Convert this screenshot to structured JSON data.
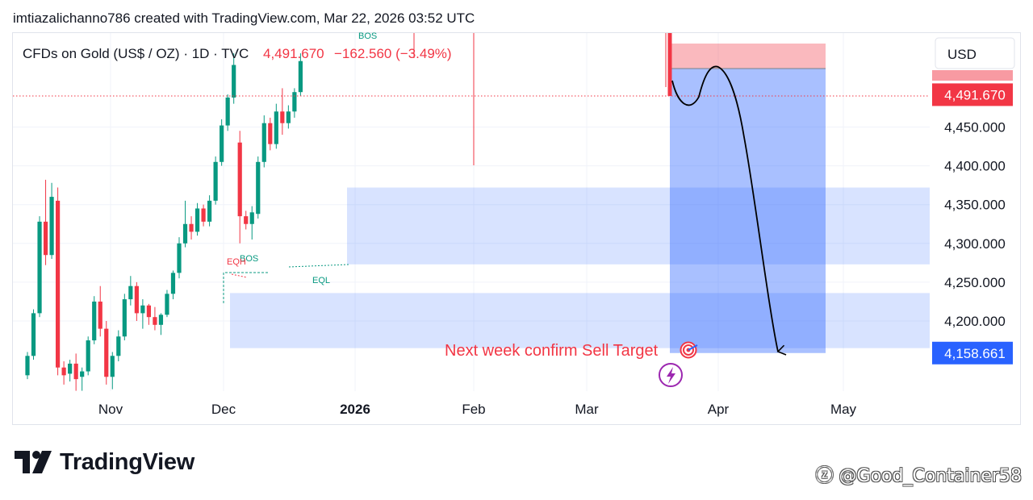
{
  "header": {
    "attribution": "imtiazalichanno786 created with TradingView.com, Mar 22, 2026 03:52 UTC"
  },
  "chart_data": {
    "type": "candlestick",
    "symbol_line": "CFDs on Gold (US$ / OZ) · 1D · TVC",
    "last_price": "4,491.670",
    "change": "−162.560 (−3.49%)",
    "currency": "USD",
    "y_ticks": [
      "4,450.000",
      "4,400.000",
      "4,350.000",
      "4,300.000",
      "4,250.000",
      "4,200.000"
    ],
    "y_range": [
      4125,
      4530
    ],
    "x_labels": [
      {
        "label": "Nov",
        "bold": false
      },
      {
        "label": "Dec",
        "bold": false
      },
      {
        "label": "2026",
        "bold": true
      },
      {
        "label": "Feb",
        "bold": false
      },
      {
        "label": "Mar",
        "bold": false
      },
      {
        "label": "Apr",
        "bold": false
      },
      {
        "label": "May",
        "bold": false
      }
    ],
    "price_tags": [
      {
        "label": "4,491.670",
        "color": "#f23645",
        "value": 4491.67
      },
      {
        "label": "4,158.661",
        "color": "#2962ff",
        "value": 4158.661
      }
    ],
    "annotations": {
      "bos_top": "BOS",
      "bos_left": "BOS",
      "eqh": "EQH",
      "eql": "EQL",
      "target_text": "Next week confirm Sell Target",
      "target_icon": "target-emoji-icon",
      "event_icon": "lightning-icon"
    },
    "zones": [
      {
        "name": "upper-demand-zone",
        "top": 4372,
        "bottom": 4273
      },
      {
        "name": "lower-demand-zone",
        "top": 4236,
        "bottom": 4165
      }
    ],
    "short_position": {
      "entry": 4491.67,
      "stop": 4522,
      "target": 4158.661
    },
    "candles": [
      [
        4130,
        4160,
        4125,
        4155
      ],
      [
        4155,
        4215,
        4150,
        4210
      ],
      [
        4210,
        4335,
        4205,
        4328
      ],
      [
        4328,
        4382,
        4272,
        4285
      ],
      [
        4285,
        4378,
        4280,
        4360
      ],
      [
        4355,
        4372,
        4130,
        4140
      ],
      [
        4140,
        4148,
        4118,
        4130
      ],
      [
        4132,
        4150,
        4122,
        4145
      ],
      [
        4145,
        4158,
        4110,
        4125
      ],
      [
        4128,
        4140,
        4110,
        4135
      ],
      [
        4135,
        4180,
        4130,
        4175
      ],
      [
        4175,
        4232,
        4170,
        4225
      ],
      [
        4225,
        4245,
        4180,
        4190
      ],
      [
        4190,
        4200,
        4118,
        4128
      ],
      [
        4128,
        4160,
        4112,
        4155
      ],
      [
        4155,
        4188,
        4148,
        4180
      ],
      [
        4180,
        4235,
        4175,
        4228
      ],
      [
        4228,
        4258,
        4220,
        4245
      ],
      [
        4245,
        4250,
        4200,
        4210
      ],
      [
        4210,
        4228,
        4190,
        4220
      ],
      [
        4220,
        4222,
        4195,
        4205
      ],
      [
        4205,
        4218,
        4188,
        4195
      ],
      [
        4195,
        4210,
        4182,
        4208
      ],
      [
        4208,
        4240,
        4205,
        4235
      ],
      [
        4235,
        4265,
        4228,
        4262
      ],
      [
        4262,
        4308,
        4255,
        4300
      ],
      [
        4300,
        4355,
        4295,
        4325
      ],
      [
        4325,
        4335,
        4305,
        4315
      ],
      [
        4315,
        4352,
        4310,
        4345
      ],
      [
        4345,
        4350,
        4322,
        4328
      ],
      [
        4328,
        4362,
        4322,
        4355
      ],
      [
        4355,
        4412,
        4350,
        4405
      ],
      [
        4405,
        4460,
        4400,
        4452
      ],
      [
        4452,
        4492,
        4445,
        4488
      ],
      [
        4488,
        4545,
        4480,
        4530
      ],
      [
        4430,
        4445,
        4300,
        4335
      ],
      [
        4335,
        4342,
        4318,
        4325
      ],
      [
        4325,
        4348,
        4305,
        4340
      ],
      [
        4338,
        4412,
        4332,
        4405
      ],
      [
        4405,
        4465,
        4398,
        4455
      ],
      [
        4455,
        4462,
        4420,
        4428
      ],
      [
        4428,
        4480,
        4422,
        4470
      ],
      [
        4470,
        4500,
        4440,
        4455
      ],
      [
        4455,
        4478,
        4448,
        4470
      ],
      [
        4470,
        4500,
        4462,
        4495
      ],
      [
        4495,
        4545,
        4490,
        4535
      ]
    ]
  },
  "footer": {
    "brand": "TradingView",
    "watermark": "ⓩ @Good_Container58"
  }
}
